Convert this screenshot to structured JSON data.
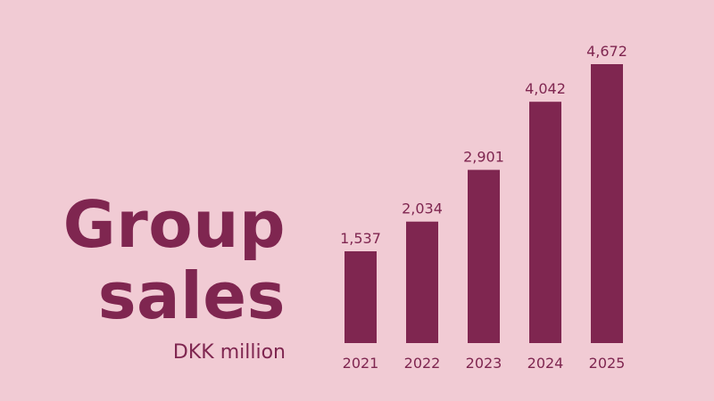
{
  "colors": {
    "background": "#f1cbd4",
    "accent": "#7f2650"
  },
  "title": {
    "line1": "Group",
    "line2": "sales"
  },
  "unit_label": "DKK million",
  "chart_data": {
    "type": "bar",
    "categories": [
      "2021",
      "2022",
      "2023",
      "2024",
      "2025"
    ],
    "values": [
      1537,
      2034,
      2901,
      4042,
      4672
    ],
    "value_labels": [
      "1,537",
      "2,034",
      "2,901",
      "4,042",
      "4,672"
    ],
    "title": "Group sales",
    "subtitle": "DKK million",
    "xlabel": "",
    "ylabel": "",
    "ylim": [
      0,
      4672
    ],
    "grid": false,
    "legend": "none"
  }
}
